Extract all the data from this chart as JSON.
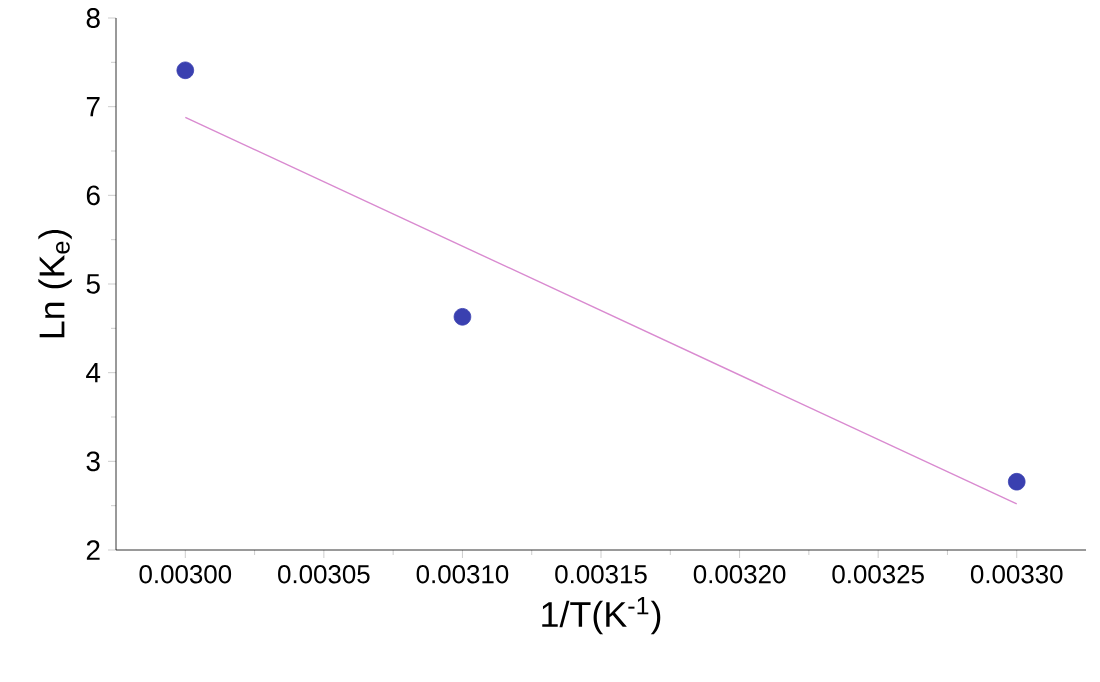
{
  "chart_data": {
    "type": "scatter",
    "xlabel": "1/T(K$^{-1}$)",
    "ylabel": "Ln (K$_{e}$)",
    "xlim": [
      0.002975,
      0.003325
    ],
    "ylim": [
      2,
      8
    ],
    "xticks": [
      {
        "value": 0.003,
        "label": "0.00300"
      },
      {
        "value": 0.00305,
        "label": "0.00305"
      },
      {
        "value": 0.0031,
        "label": "0.00310"
      },
      {
        "value": 0.00315,
        "label": "0.00315"
      },
      {
        "value": 0.0032,
        "label": "0.00320"
      },
      {
        "value": 0.00325,
        "label": "0.00325"
      },
      {
        "value": 0.0033,
        "label": "0.00330"
      }
    ],
    "yticks": [
      2,
      3,
      4,
      5,
      6,
      7,
      8
    ],
    "series": [
      {
        "marker": "circle",
        "color": "#3a40b0",
        "x": [
          0.003,
          0.0031,
          0.0033
        ],
        "values": [
          7.41,
          4.63,
          2.77
        ]
      },
      {
        "type": "line",
        "marker": "none",
        "color": "#d98ad0",
        "x": [
          0.003,
          0.0033
        ],
        "values": [
          6.88,
          2.52
        ]
      }
    ]
  }
}
